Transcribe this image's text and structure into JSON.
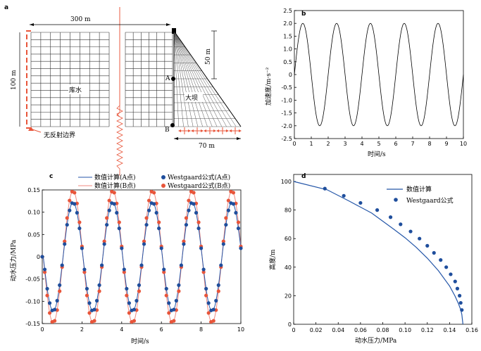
{
  "panel_letters": {
    "a": "a",
    "b": "b",
    "c": "c",
    "d": "d"
  },
  "diagram": {
    "width_label": "300 m",
    "height_label": "100 m",
    "dam_height_label": "50 m",
    "dam_base_label": "70 m",
    "reservoir_label": "库水",
    "dam_label": "大坝",
    "boundary_label": "无反射边界",
    "point_a": "A",
    "point_b": "B"
  },
  "colors": {
    "blue": "#1f4e9c",
    "red": "#e8553a",
    "line_blue": "#2456a8",
    "line_red": "#f08a80",
    "dam_lines": "#555555",
    "boundary": "#e8553a"
  },
  "chart_data": [
    {
      "type": "line",
      "panel": "b",
      "xlabel": "时间/s",
      "ylabel": "加速度/m·s⁻²",
      "xlim": [
        0,
        10
      ],
      "ylim": [
        -2.5,
        2.5
      ],
      "xticks": [
        0,
        1,
        2,
        3,
        4,
        5,
        6,
        7,
        8,
        9,
        10
      ],
      "yticks": [
        "-2.5",
        "-2.0",
        "-1.5",
        "-1.0",
        "-0.5",
        "0",
        "0.5",
        "1.0",
        "1.5",
        "2.0",
        "2.5"
      ],
      "series": [
        {
          "amplitude": 2.0,
          "period_s": 2.0,
          "start": 0,
          "end": 10
        }
      ]
    },
    {
      "type": "line",
      "panel": "c",
      "xlabel": "时间/s",
      "ylabel": "动水压力/MPa",
      "xlim": [
        0,
        10
      ],
      "ylim": [
        -0.15,
        0.15
      ],
      "xticks": [
        "0",
        "2",
        "4",
        "6",
        "8",
        "10"
      ],
      "yticks": [
        "-0.15",
        "-0.10",
        "-0.05",
        "0",
        "0.05",
        "0.10",
        "0.15"
      ],
      "legend": [
        "数值计算(A点)",
        "Westgaard公式(A点)",
        "数值计算(B点)",
        "Westgaard公式(B点)"
      ],
      "series": [
        {
          "name": "数值计算(A点)",
          "amplitude": 0.122,
          "period_s": 2.0
        },
        {
          "name": "数值计算(B点)",
          "amplitude": 0.148,
          "period_s": 2.0
        },
        {
          "name": "Westgaard公式(A点)",
          "amplitude": 0.122,
          "period_s": 2.0
        },
        {
          "name": "Westgaard公式(B点)",
          "amplitude": 0.148,
          "period_s": 2.0
        }
      ]
    },
    {
      "type": "line",
      "panel": "d",
      "xlabel": "动水压力/MPa",
      "ylabel": "高度/m",
      "xlim": [
        0,
        0.16
      ],
      "ylim": [
        0,
        100
      ],
      "xticks": [
        "0",
        "0.02",
        "0.04",
        "0.06",
        "0.08",
        "0.10",
        "0.12",
        "0.14",
        "0.16"
      ],
      "yticks": [
        "0",
        "20",
        "40",
        "60",
        "80",
        "100"
      ],
      "legend": [
        "数值计算",
        "Westgaard公式"
      ],
      "series": [
        {
          "name": "数值计算",
          "x": [
            0,
            0.03,
            0.05,
            0.07,
            0.09,
            0.1,
            0.11,
            0.12,
            0.13,
            0.14,
            0.145,
            0.148,
            0.15,
            0.151,
            0.152
          ],
          "y": [
            100,
            94.2,
            86.2,
            77.9,
            66.5,
            60.6,
            53.9,
            46.3,
            37.5,
            26.8,
            19.6,
            14.4,
            10.2,
            6.9,
            0
          ]
        },
        {
          "name": "Westgaard公式",
          "x": [
            0.028,
            0.045,
            0.06,
            0.075,
            0.087,
            0.096,
            0.105,
            0.113,
            0.12,
            0.126,
            0.132,
            0.137,
            0.141,
            0.145,
            0.147,
            0.149,
            0.15,
            0.151
          ],
          "y": [
            95,
            90,
            85,
            80,
            75,
            70,
            65,
            60,
            55,
            50,
            45,
            40,
            35,
            30,
            25,
            20,
            15,
            10
          ]
        }
      ]
    }
  ]
}
